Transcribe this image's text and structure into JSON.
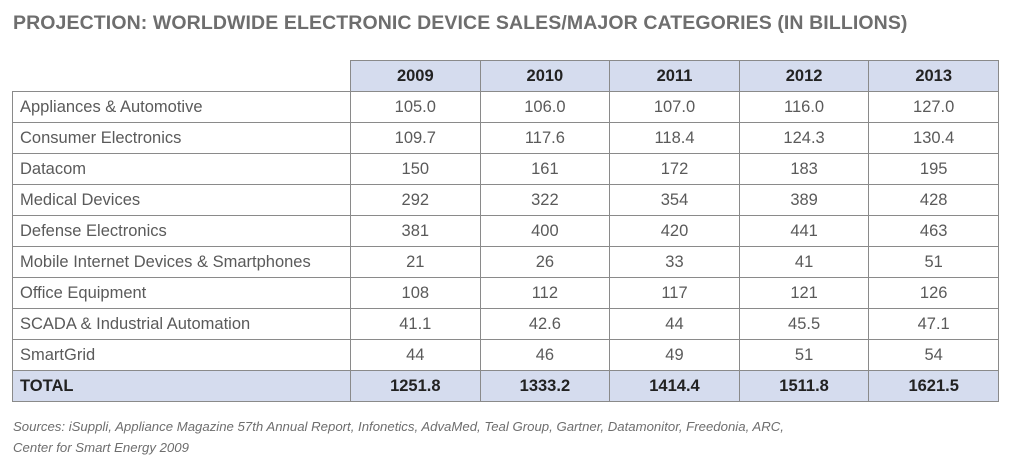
{
  "title": "PROJECTION: WORLDWIDE ELECTRONIC DEVICE SALES/MAJOR CATEGORIES (IN BILLIONS)",
  "colors": {
    "header_fill": "#d5dcee",
    "border": "#8a8a8a",
    "text": "#5a5a5a"
  },
  "chart_data": {
    "type": "table",
    "title": "PROJECTION: WORLDWIDE ELECTRONIC DEVICE SALES/MAJOR CATEGORIES (IN BILLIONS)",
    "columns": [
      "2009",
      "2010",
      "2011",
      "2012",
      "2013"
    ],
    "rows": [
      {
        "label": "Appliances & Automotive",
        "values": [
          "105.0",
          "106.0",
          "107.0",
          "116.0",
          "127.0"
        ]
      },
      {
        "label": "Consumer Electronics",
        "values": [
          "109.7",
          "117.6",
          "118.4",
          "124.3",
          "130.4"
        ]
      },
      {
        "label": "Datacom",
        "values": [
          "150",
          "161",
          "172",
          "183",
          "195"
        ]
      },
      {
        "label": "Medical Devices",
        "values": [
          "292",
          "322",
          "354",
          "389",
          "428"
        ]
      },
      {
        "label": "Defense Electronics",
        "values": [
          "381",
          "400",
          "420",
          "441",
          "463"
        ]
      },
      {
        "label": "Mobile Internet Devices & Smartphones",
        "values": [
          "21",
          "26",
          "33",
          "41",
          "51"
        ]
      },
      {
        "label": "Office Equipment",
        "values": [
          "108",
          "112",
          "117",
          "121",
          "126"
        ]
      },
      {
        "label": "SCADA & Industrial Automation",
        "values": [
          "41.1",
          "42.6",
          "44",
          "45.5",
          "47.1"
        ]
      },
      {
        "label": "SmartGrid",
        "values": [
          "44",
          "46",
          "49",
          "51",
          "54"
        ]
      }
    ],
    "total": {
      "label": "TOTAL",
      "values": [
        "1251.8",
        "1333.2",
        "1414.4",
        "1511.8",
        "1621.5"
      ]
    }
  },
  "sources": {
    "line1": "Sources: iSuppli, Appliance Magazine 57th Annual Report, Infonetics, AdvaMed, Teal Group, Gartner, Datamonitor, Freedonia, ARC,",
    "line2": "Center for Smart Energy 2009"
  }
}
